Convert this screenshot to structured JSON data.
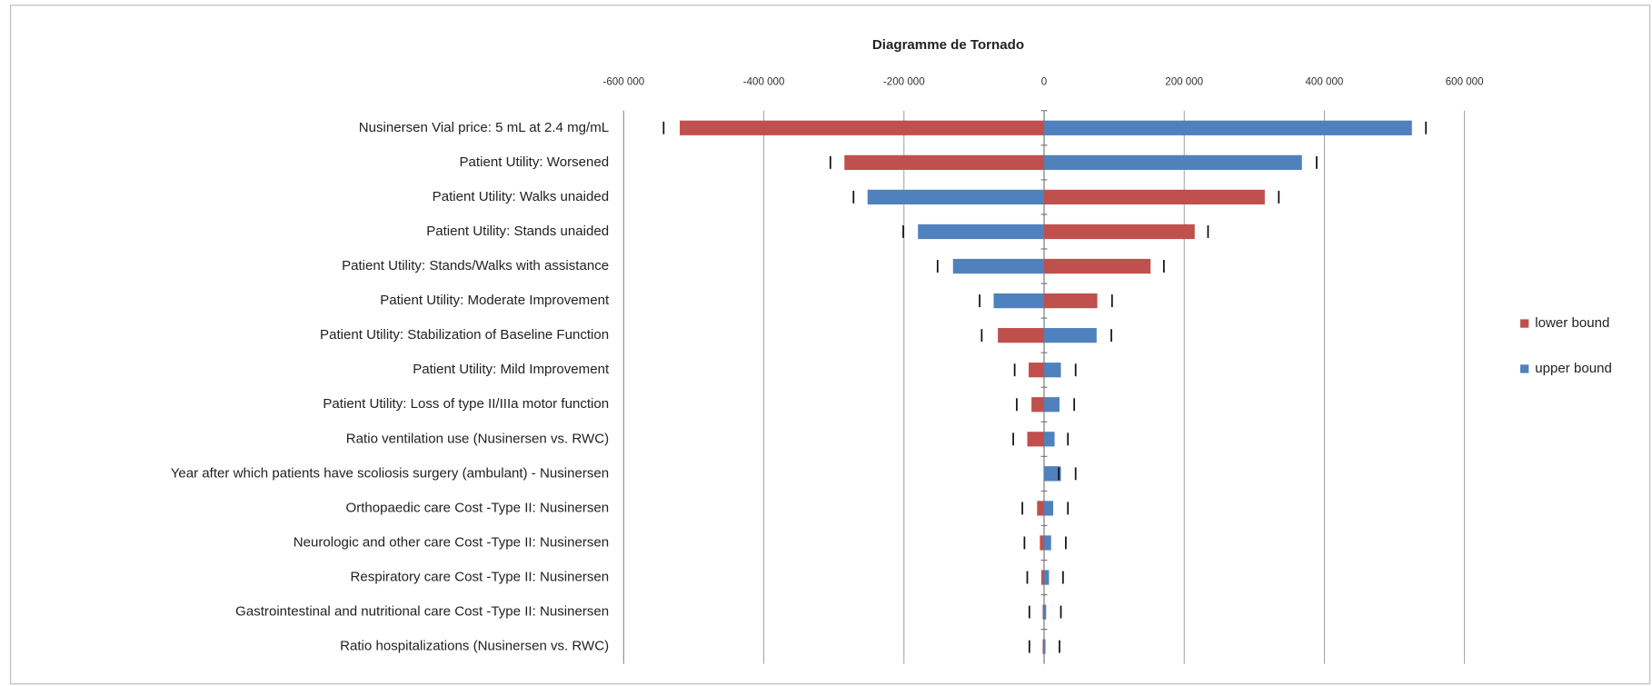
{
  "chart_data": {
    "type": "tornado",
    "title": "Diagramme de Tornado",
    "categories": [
      "Nusinersen Vial price: 5 mL at 2.4 mg/mL",
      "Patient Utility: Worsened",
      "Patient Utility: Walks unaided",
      "Patient Utility: Stands unaided",
      "Patient Utility: Stands/Walks with assistance",
      "Patient Utility: Moderate Improvement",
      "Patient Utility: Stabilization of Baseline Function",
      "Patient Utility: Mild Improvement",
      "Patient Utility: Loss of type II/IIIa motor function",
      "Ratio ventilation use (Nusinersen vs. RWC)",
      "Year after which patients have scoliosis surgery (ambulant) - Nusinersen",
      "Orthopaedic care Cost -Type II: Nusinersen",
      "Neurologic and other care Cost -Type II: Nusinersen",
      "Respiratory care Cost -Type II: Nusinersen",
      "Gastrointestinal and nutritional care Cost -Type II: Nusinersen",
      "Ratio hospitalizations (Nusinersen vs. RWC)"
    ],
    "series": [
      {
        "name": "lower bound",
        "color": "#c0504d",
        "values": [
          -520000,
          -285000,
          315000,
          215000,
          152000,
          76000,
          -66000,
          -22000,
          -18000,
          -24000,
          20000,
          -10000,
          -6000,
          -4000,
          -2000,
          -2000
        ]
      },
      {
        "name": "upper bound",
        "color": "#4f81bd",
        "values": [
          525000,
          368000,
          -252000,
          -180000,
          -130000,
          -72000,
          75000,
          24000,
          22000,
          15000,
          24000,
          13000,
          10000,
          7000,
          3000,
          2000
        ]
      }
    ],
    "bound_marks": {
      "left": [
        -543000,
        -305000,
        -272000,
        -201000,
        -152000,
        -92000,
        -89000,
        -42000,
        -39000,
        -44000,
        21000,
        -31000,
        -28000,
        -24000,
        -21000,
        -21000
      ],
      "right": [
        545000,
        389000,
        335000,
        234000,
        171000,
        97000,
        96000,
        45000,
        43000,
        34000,
        45000,
        34000,
        31000,
        27000,
        24000,
        22000
      ]
    },
    "xlim": [
      -600000,
      600000
    ],
    "xticks": [
      {
        "value": -600000,
        "label": "-600 000"
      },
      {
        "value": -400000,
        "label": "-400 000"
      },
      {
        "value": -200000,
        "label": "-200 000"
      },
      0,
      {
        "value": 200000,
        "label": "200 000"
      },
      {
        "value": 400000,
        "label": "400 000"
      },
      {
        "value": 600000,
        "label": "600 000"
      }
    ],
    "grid": true,
    "legend": "right"
  }
}
